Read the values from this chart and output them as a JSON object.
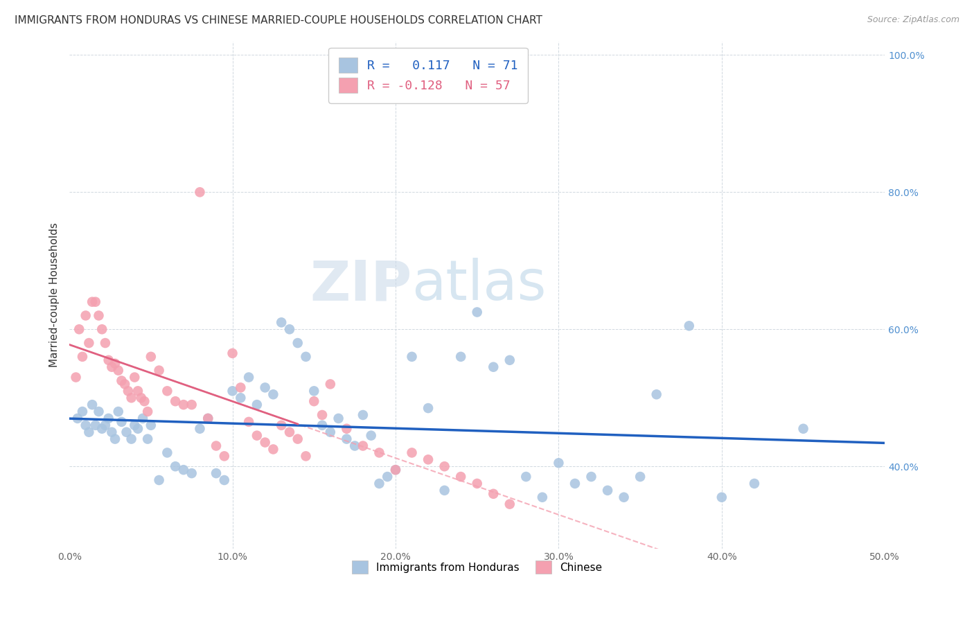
{
  "title": "IMMIGRANTS FROM HONDURAS VS CHINESE MARRIED-COUPLE HOUSEHOLDS CORRELATION CHART",
  "source": "Source: ZipAtlas.com",
  "xlim": [
    0.0,
    0.5
  ],
  "ylim": [
    0.28,
    1.02
  ],
  "y_ticks": [
    0.4,
    0.6,
    0.8,
    1.0
  ],
  "x_ticks": [
    0.0,
    0.1,
    0.2,
    0.3,
    0.4,
    0.5
  ],
  "x_tick_labels": [
    "0.0%",
    "10.0%",
    "20.0%",
    "30.0%",
    "40.0%",
    "50.0%"
  ],
  "y_tick_labels_right": [
    "40.0%",
    "60.0%",
    "80.0%",
    "100.0%"
  ],
  "blue_R": 0.117,
  "blue_N": 71,
  "pink_R": -0.128,
  "pink_N": 57,
  "ylabel": "Married-couple Households",
  "legend_label_blue": "Immigrants from Honduras",
  "legend_label_pink": "Chinese",
  "blue_color": "#a8c4e0",
  "pink_color": "#f4a0b0",
  "blue_line_color": "#2060c0",
  "pink_solid_color": "#e06080",
  "pink_dash_color": "#f4a0b0",
  "watermark_zip": "ZIP",
  "watermark_atlas": "atlas",
  "grid_color": "#d0d8e0",
  "bg_color": "#ffffff",
  "title_fontsize": 11,
  "tick_color_right": "#5090d0",
  "tick_color_bottom": "#666666",
  "blue_scatter_x": [
    0.005,
    0.008,
    0.01,
    0.012,
    0.014,
    0.016,
    0.018,
    0.02,
    0.022,
    0.024,
    0.026,
    0.028,
    0.03,
    0.032,
    0.035,
    0.038,
    0.04,
    0.042,
    0.045,
    0.048,
    0.05,
    0.055,
    0.06,
    0.065,
    0.07,
    0.075,
    0.08,
    0.085,
    0.09,
    0.095,
    0.1,
    0.105,
    0.11,
    0.115,
    0.12,
    0.125,
    0.13,
    0.135,
    0.14,
    0.145,
    0.15,
    0.155,
    0.16,
    0.165,
    0.17,
    0.175,
    0.18,
    0.185,
    0.19,
    0.195,
    0.2,
    0.21,
    0.22,
    0.23,
    0.24,
    0.25,
    0.26,
    0.27,
    0.28,
    0.29,
    0.3,
    0.31,
    0.32,
    0.33,
    0.34,
    0.35,
    0.36,
    0.38,
    0.4,
    0.42,
    0.45
  ],
  "blue_scatter_y": [
    0.47,
    0.48,
    0.46,
    0.45,
    0.49,
    0.46,
    0.48,
    0.455,
    0.46,
    0.47,
    0.45,
    0.44,
    0.48,
    0.465,
    0.45,
    0.44,
    0.46,
    0.455,
    0.47,
    0.44,
    0.46,
    0.38,
    0.42,
    0.4,
    0.395,
    0.39,
    0.455,
    0.47,
    0.39,
    0.38,
    0.51,
    0.5,
    0.53,
    0.49,
    0.515,
    0.505,
    0.61,
    0.6,
    0.58,
    0.56,
    0.51,
    0.46,
    0.45,
    0.47,
    0.44,
    0.43,
    0.475,
    0.445,
    0.375,
    0.385,
    0.395,
    0.56,
    0.485,
    0.365,
    0.56,
    0.625,
    0.545,
    0.555,
    0.385,
    0.355,
    0.405,
    0.375,
    0.385,
    0.365,
    0.355,
    0.385,
    0.505,
    0.605,
    0.355,
    0.375,
    0.455
  ],
  "pink_scatter_x": [
    0.004,
    0.006,
    0.008,
    0.01,
    0.012,
    0.014,
    0.016,
    0.018,
    0.02,
    0.022,
    0.024,
    0.026,
    0.028,
    0.03,
    0.032,
    0.034,
    0.036,
    0.038,
    0.04,
    0.042,
    0.044,
    0.046,
    0.048,
    0.05,
    0.055,
    0.06,
    0.065,
    0.07,
    0.075,
    0.08,
    0.085,
    0.09,
    0.095,
    0.1,
    0.105,
    0.11,
    0.115,
    0.12,
    0.125,
    0.13,
    0.135,
    0.14,
    0.145,
    0.15,
    0.155,
    0.16,
    0.17,
    0.18,
    0.19,
    0.2,
    0.21,
    0.22,
    0.23,
    0.24,
    0.25,
    0.26,
    0.27
  ],
  "pink_scatter_y": [
    0.53,
    0.6,
    0.56,
    0.62,
    0.58,
    0.64,
    0.64,
    0.62,
    0.6,
    0.58,
    0.555,
    0.545,
    0.55,
    0.54,
    0.525,
    0.52,
    0.51,
    0.5,
    0.53,
    0.51,
    0.5,
    0.495,
    0.48,
    0.56,
    0.54,
    0.51,
    0.495,
    0.49,
    0.49,
    0.8,
    0.47,
    0.43,
    0.415,
    0.565,
    0.515,
    0.465,
    0.445,
    0.435,
    0.425,
    0.46,
    0.45,
    0.44,
    0.415,
    0.495,
    0.475,
    0.52,
    0.455,
    0.43,
    0.42,
    0.395,
    0.42,
    0.41,
    0.4,
    0.385,
    0.375,
    0.36,
    0.345
  ],
  "pink_solid_xrange": [
    0.0,
    0.14
  ],
  "blue_line_xrange": [
    0.0,
    0.5
  ]
}
